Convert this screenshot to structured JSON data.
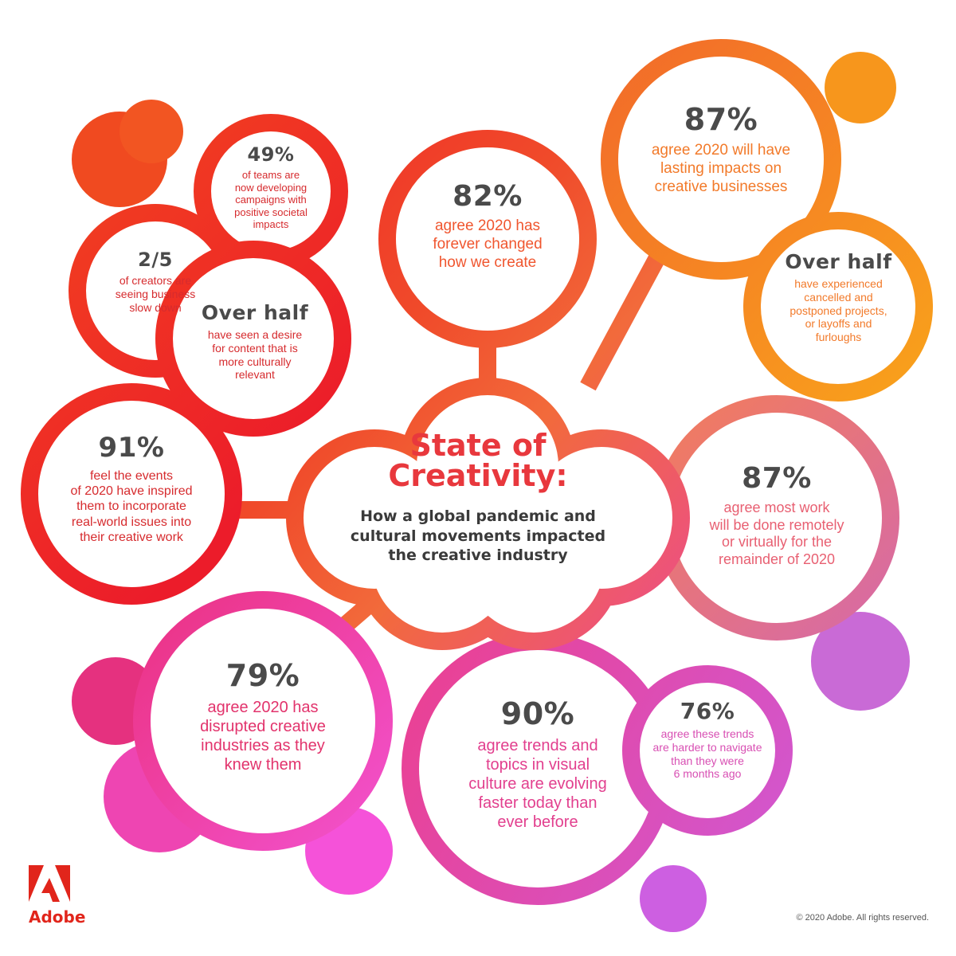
{
  "title": "State of\nCreativity:",
  "subtitle": "How a global pandemic and\ncultural movements impacted\nthe creative industry",
  "stats": {
    "s49": {
      "value": "49%",
      "text": "of teams are\nnow developing\ncampaigns with\npositive societal\nimpacts"
    },
    "s25": {
      "value": "2/5",
      "text": "of creators are\nseeing business\nslow down"
    },
    "sOverHalfCulture": {
      "value": "Over half",
      "text": "have seen a desire\nfor content that is\nmore culturally\nrelevant"
    },
    "s82": {
      "value": "82%",
      "text": "agree 2020 has\nforever changed\nhow we create"
    },
    "s87lasting": {
      "value": "87%",
      "text": "agree 2020 will have\nlasting impacts on\ncreative businesses"
    },
    "sOverHalfCancel": {
      "value": "Over half",
      "text": "have experienced\ncancelled and\npostponed projects,\nor layoffs and\nfurloughs"
    },
    "s91": {
      "value": "91%",
      "text": "feel the events\nof 2020 have inspired\nthem to incorporate\nreal-world issues into\ntheir creative work"
    },
    "s87remote": {
      "value": "87%",
      "text": "agree most work\nwill be done remotely\nor virtually for the\nremainder of 2020"
    },
    "s79": {
      "value": "79%",
      "text": "agree 2020 has\ndisrupted creative\nindustries as they\nknew them"
    },
    "s90": {
      "value": "90%",
      "text": "agree trends and\ntopics in visual\nculture are evolving\nfaster today than\never before"
    },
    "s76": {
      "value": "76%",
      "text": "agree these trends\nare harder to navigate\nthan they were\n6 months ago"
    }
  },
  "brand": {
    "name": "Adobe",
    "copyright": "© 2020 Adobe. All rights reserved."
  },
  "colors": {
    "red": "#e8252a",
    "orange": "#f7941d",
    "magenta": "#e83e8c",
    "pink": "#f05aa8",
    "purple": "#c36ad8",
    "dark_text": "#4a4a4a"
  }
}
